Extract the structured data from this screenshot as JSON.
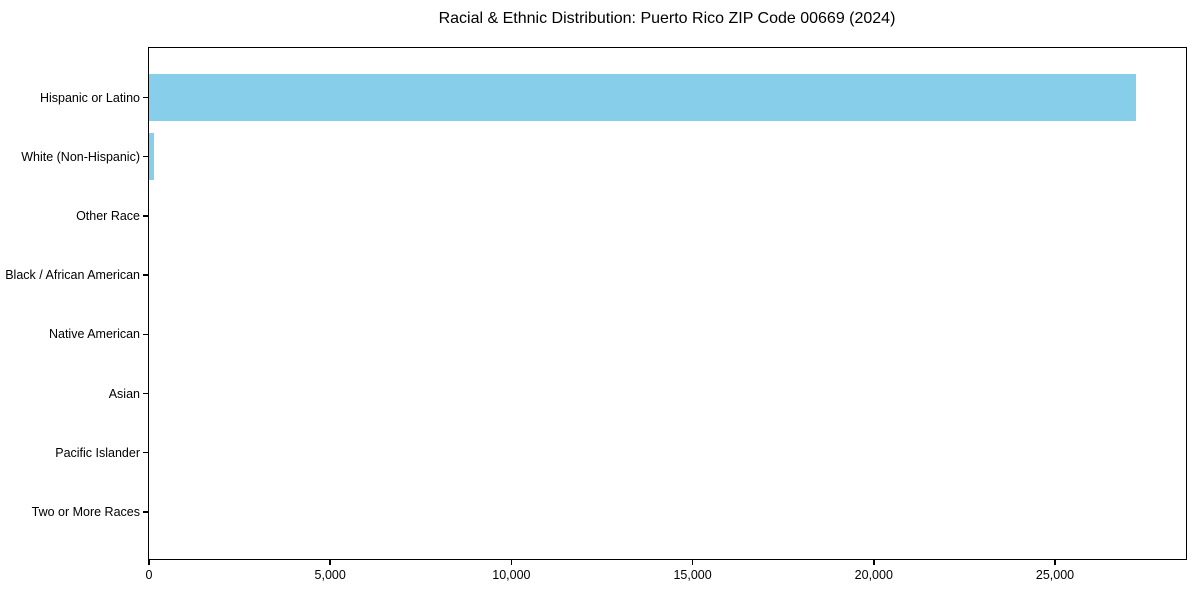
{
  "chart_data": {
    "type": "bar",
    "orientation": "horizontal",
    "title": "Racial & Ethnic Distribution: Puerto Rico ZIP Code 00669 (2024)",
    "categories": [
      "Hispanic or Latino",
      "White (Non-Hispanic)",
      "Other Race",
      "Black / African American",
      "Native American",
      "Asian",
      "Pacific Islander",
      "Two or More Races"
    ],
    "values": [
      27235,
      130,
      0,
      0,
      0,
      0,
      0,
      0
    ],
    "bar_color": "#87CEEB",
    "xlabel": "",
    "ylabel": "",
    "xlim": [
      0,
      28600
    ],
    "x_ticks": [
      0,
      5000,
      10000,
      15000,
      20000,
      25000
    ],
    "x_tick_labels": [
      "0",
      "5,000",
      "10,000",
      "15,000",
      "20,000",
      "25,000"
    ],
    "grid": false,
    "legend": null,
    "background_color": "#ffffff",
    "frame_color": "#000000",
    "text_color": "#000000"
  }
}
